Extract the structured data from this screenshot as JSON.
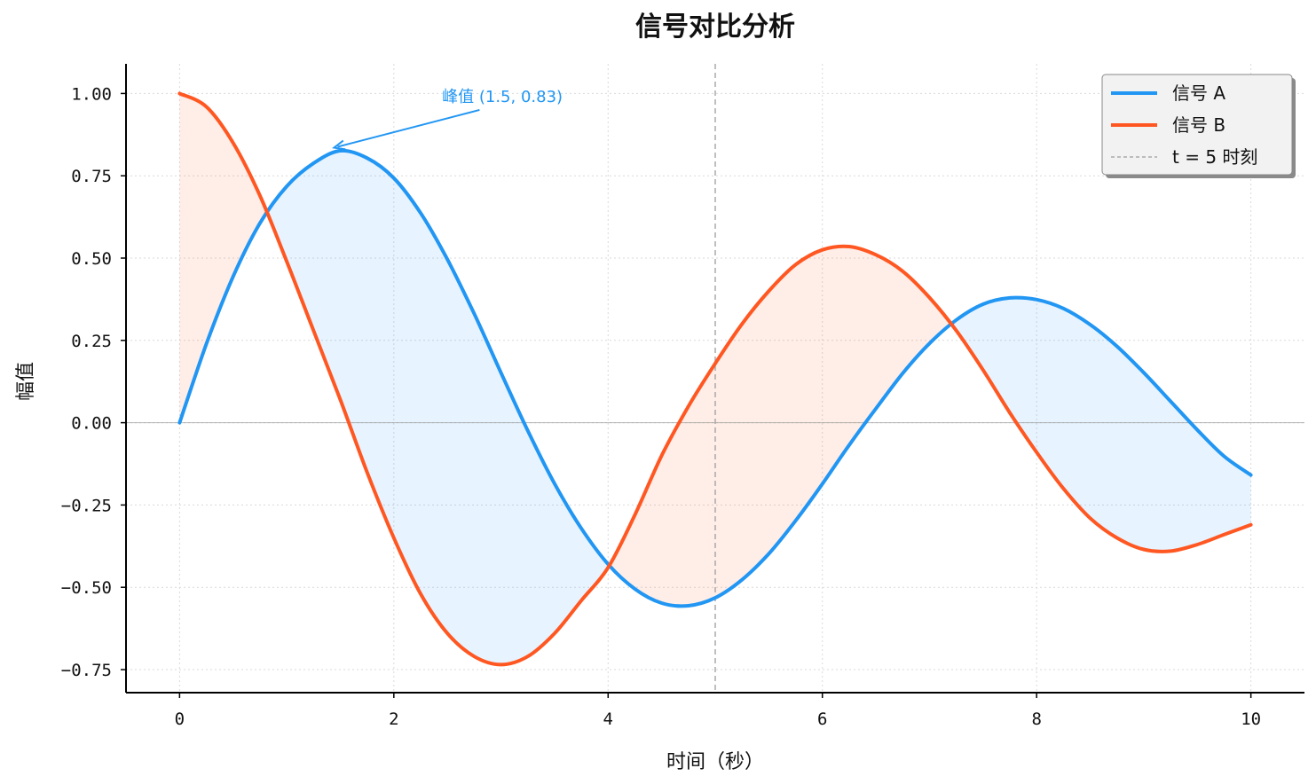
{
  "chart_data": {
    "type": "line",
    "title": "信号对比分析",
    "xlabel": "时间（秒）",
    "ylabel": "幅值",
    "xlim": [
      -0.5,
      10.5
    ],
    "ylim": [
      -0.82,
      1.09
    ],
    "xticks": [
      0,
      2,
      4,
      6,
      8,
      10
    ],
    "xtick_labels": [
      "0",
      "2",
      "4",
      "6",
      "8",
      "10"
    ],
    "yticks": [
      1.0,
      0.75,
      0.5,
      0.25,
      0.0,
      -0.25,
      -0.5,
      -0.75
    ],
    "ytick_labels": [
      "1.00",
      "0.75",
      "0.50",
      "0.25",
      "0.00",
      "−0.25",
      "−0.50",
      "−0.75"
    ],
    "grid": true,
    "legend_position": "top-right",
    "series": [
      {
        "name": "信号 A",
        "color": "#2196F3",
        "x": [
          0,
          0.25,
          0.5,
          0.75,
          1,
          1.25,
          1.5,
          1.75,
          2,
          2.25,
          2.5,
          2.75,
          3,
          3.25,
          3.5,
          3.75,
          4,
          4.25,
          4.5,
          4.75,
          5,
          5.25,
          5.5,
          5.75,
          6,
          6.25,
          6.5,
          6.75,
          7,
          7.25,
          7.5,
          7.75,
          8,
          8.25,
          8.5,
          8.75,
          9,
          9.25,
          9.5,
          9.75,
          10
        ],
        "y": [
          0,
          0.239,
          0.444,
          0.606,
          0.718,
          0.788,
          0.826,
          0.804,
          0.743,
          0.637,
          0.496,
          0.331,
          0.152,
          -0.024,
          -0.185,
          -0.321,
          -0.43,
          -0.505,
          -0.548,
          -0.556,
          -0.532,
          -0.477,
          -0.398,
          -0.298,
          -0.186,
          -0.068,
          0.043,
          0.15,
          0.241,
          0.312,
          0.36,
          0.379,
          0.374,
          0.347,
          0.298,
          0.232,
          0.152,
          0.065,
          -0.022,
          -0.102,
          -0.159
        ]
      },
      {
        "name": "信号 B",
        "color": "#FF5722",
        "x": [
          0,
          0.25,
          0.5,
          0.75,
          1,
          1.25,
          1.5,
          1.75,
          2,
          2.25,
          2.5,
          2.75,
          3,
          3.25,
          3.5,
          3.75,
          4,
          4.25,
          4.5,
          4.75,
          5,
          5.25,
          5.5,
          5.75,
          6,
          6.25,
          6.5,
          6.75,
          7,
          7.25,
          7.5,
          7.75,
          8,
          8.25,
          8.5,
          8.75,
          9,
          9.25,
          9.5,
          9.75,
          10
        ],
        "y": [
          1.0,
          0.96,
          0.85,
          0.69,
          0.49,
          0.28,
          0.07,
          -0.15,
          -0.35,
          -0.52,
          -0.64,
          -0.71,
          -0.735,
          -0.71,
          -0.64,
          -0.54,
          -0.44,
          -0.28,
          -0.1,
          0.05,
          0.18,
          0.3,
          0.4,
          0.48,
          0.525,
          0.535,
          0.51,
          0.46,
          0.38,
          0.28,
          0.16,
          0.03,
          -0.09,
          -0.2,
          -0.29,
          -0.35,
          -0.385,
          -0.39,
          -0.37,
          -0.34,
          -0.31
        ]
      }
    ],
    "vline": {
      "x": 5,
      "label": "t = 5 时刻",
      "color": "#aaaaaa"
    },
    "annotation": {
      "text": "峰值 (1.5, 0.83)",
      "x": 1.5,
      "y": 0.83,
      "text_x": 2.45,
      "text_y": 0.99,
      "color": "#2196F3"
    }
  }
}
